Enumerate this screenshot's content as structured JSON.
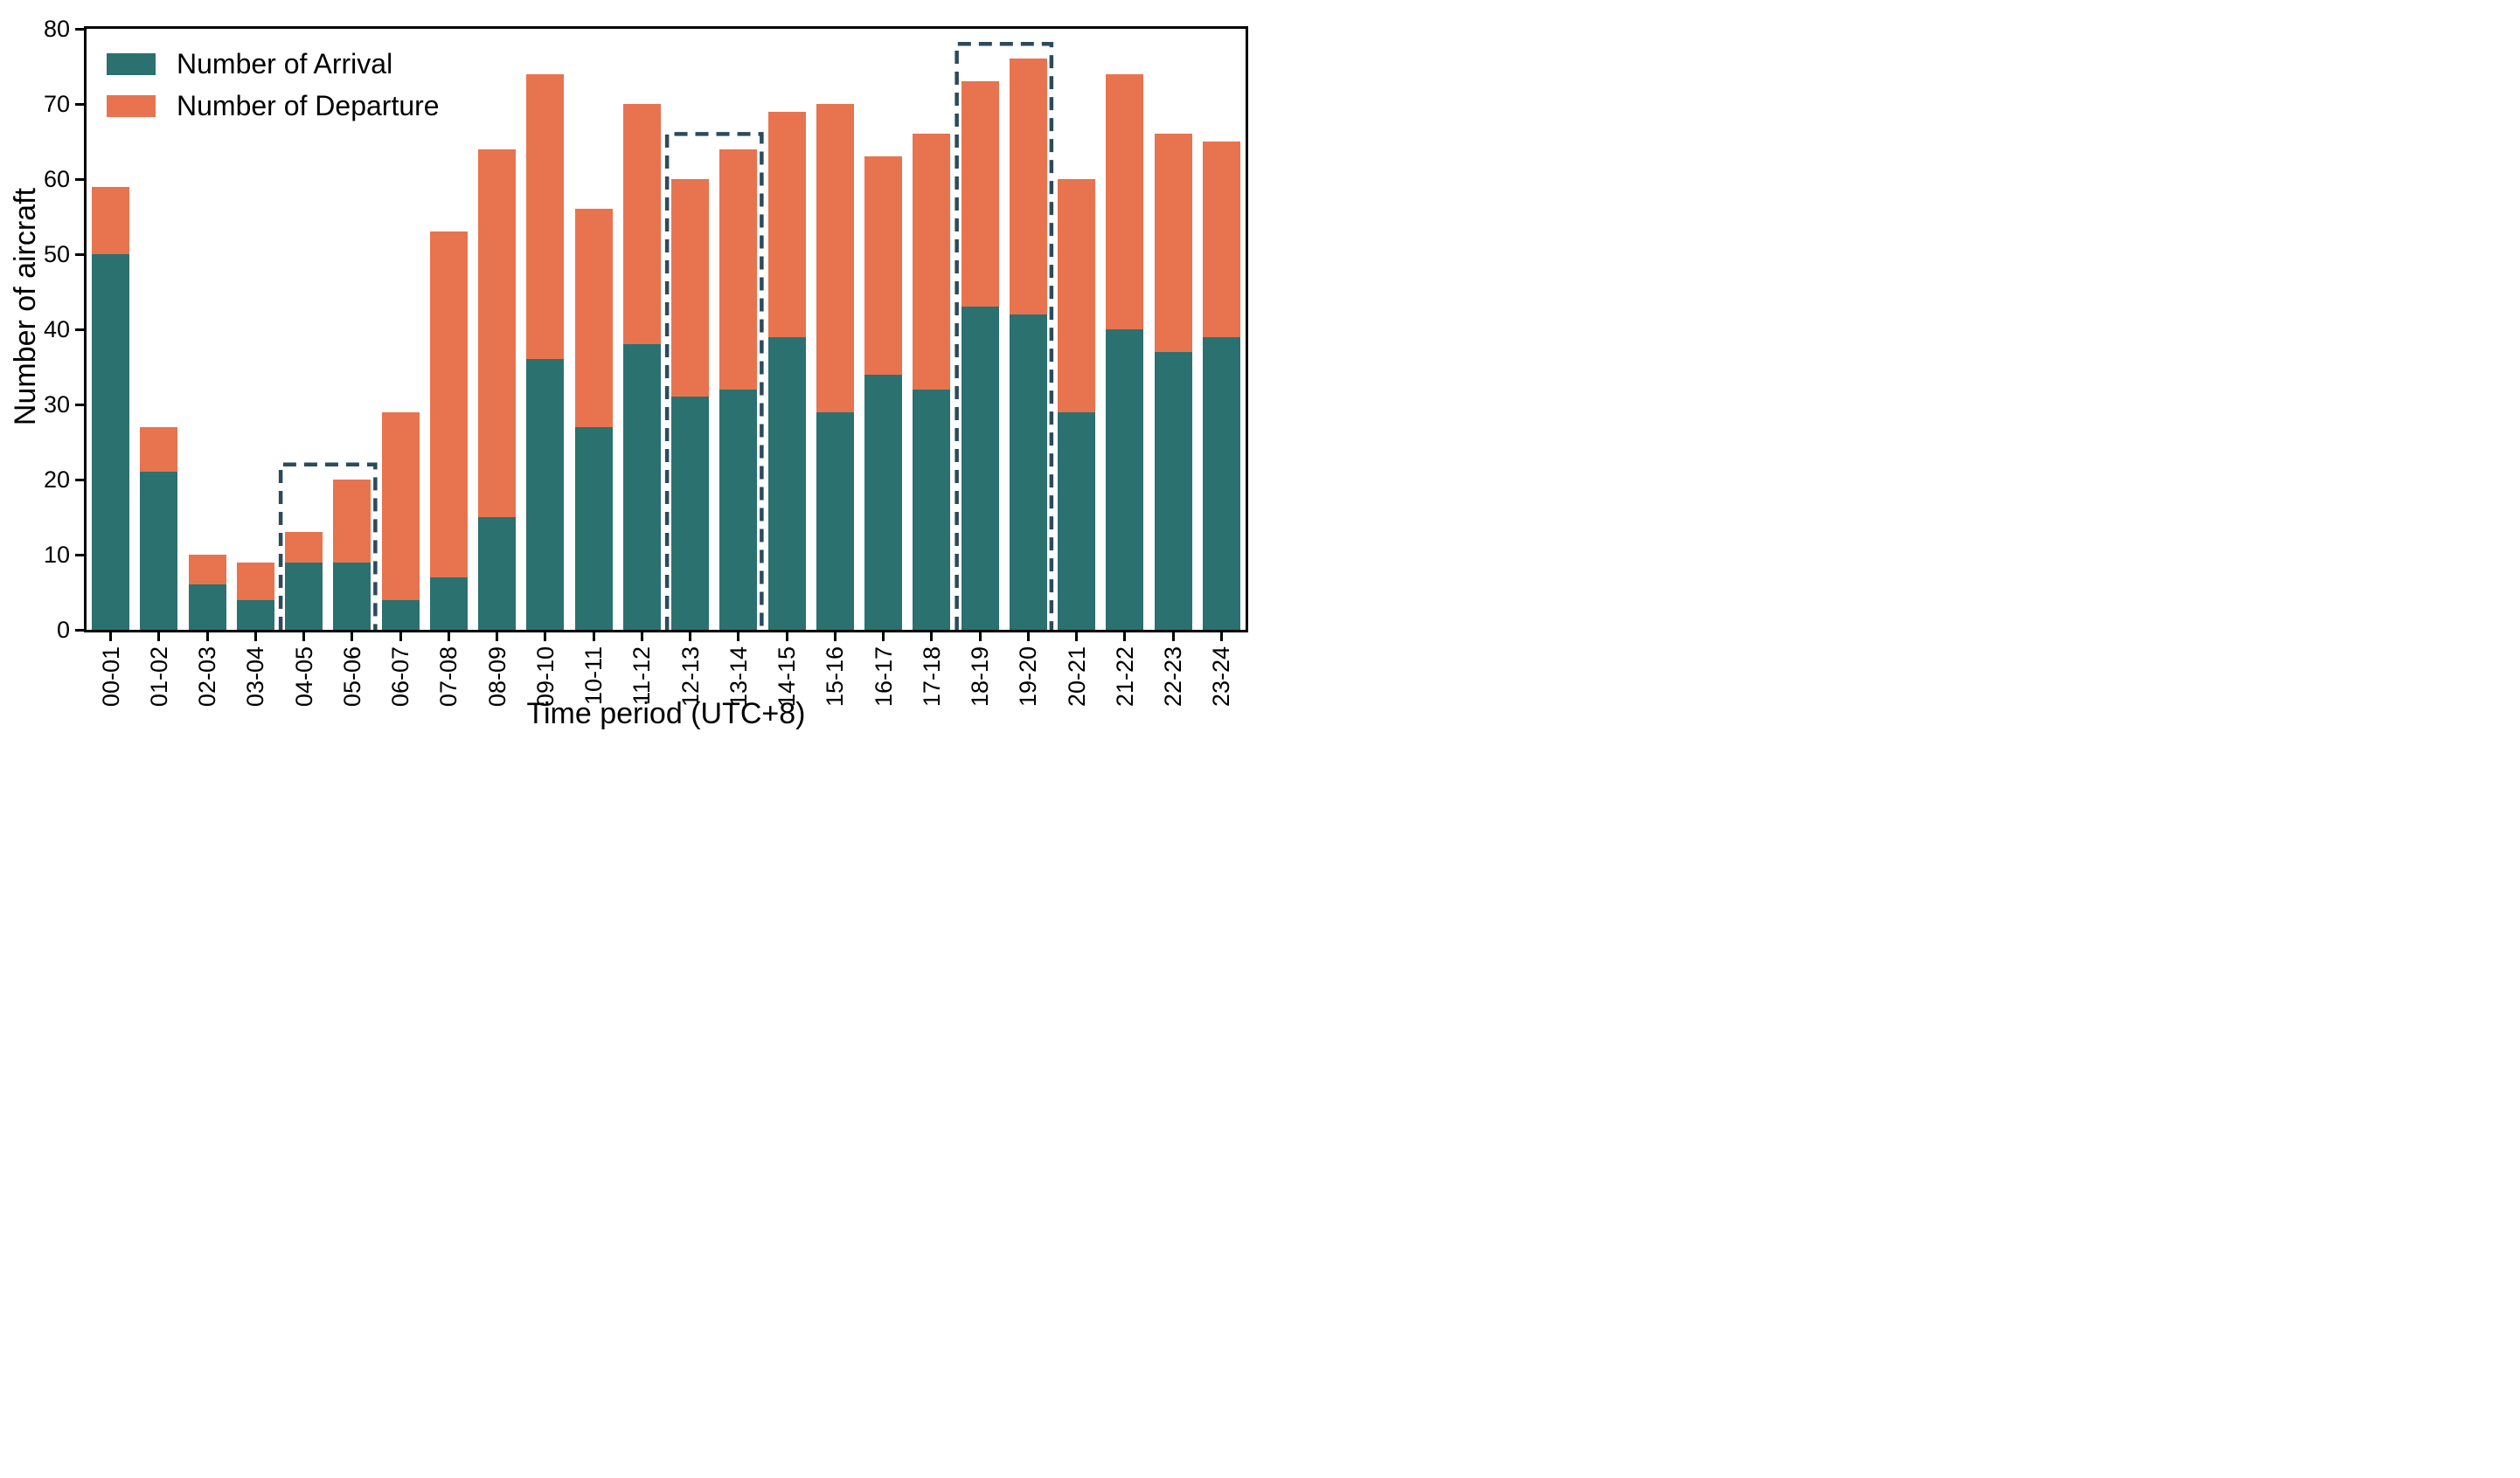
{
  "chart_data": {
    "type": "bar",
    "stacked": true,
    "title": "",
    "xlabel": "Time period (UTC+8)",
    "ylabel": "Number of aircraft",
    "ylim": [
      0,
      80
    ],
    "yticks": [
      0,
      10,
      20,
      30,
      40,
      50,
      60,
      70,
      80
    ],
    "grid": false,
    "legend_position": "upper left",
    "categories": [
      "00-01",
      "01-02",
      "02-03",
      "03-04",
      "04-05",
      "05-06",
      "06-07",
      "07-08",
      "08-09",
      "09-10",
      "10-11",
      "11-12",
      "12-13",
      "13-14",
      "14-15",
      "15-16",
      "16-17",
      "17-18",
      "18-19",
      "19-20",
      "20-21",
      "21-22",
      "22-23",
      "23-24"
    ],
    "series": [
      {
        "name": "Number of Arrival",
        "color": "#2a7170",
        "values": [
          50,
          21,
          6,
          4,
          9,
          9,
          4,
          7,
          15,
          36,
          27,
          38,
          31,
          32,
          39,
          29,
          34,
          32,
          43,
          42,
          29,
          40,
          37,
          39
        ]
      },
      {
        "name": "Number of Departure",
        "color": "#e7744f",
        "values": [
          9,
          6,
          4,
          5,
          4,
          11,
          25,
          46,
          49,
          38,
          29,
          32,
          29,
          32,
          30,
          41,
          29,
          34,
          30,
          34,
          31,
          34,
          29,
          26
        ]
      }
    ],
    "totals": [
      59,
      27,
      10,
      9,
      13,
      20,
      29,
      53,
      64,
      74,
      56,
      70,
      60,
      64,
      69,
      70,
      63,
      66,
      73,
      76,
      60,
      74,
      66,
      65
    ],
    "highlight_boxes": [
      {
        "categories": [
          "04-05",
          "05-06"
        ],
        "top": 22,
        "color": "#2c4a5c"
      },
      {
        "categories": [
          "12-13",
          "13-14"
        ],
        "top": 66,
        "color": "#2c4a5c"
      },
      {
        "categories": [
          "18-19",
          "19-20"
        ],
        "top": 78,
        "color": "#2c4a5c"
      }
    ],
    "axis_color": "#000000",
    "background_color": "#ffffff"
  },
  "legend": {
    "arrival_label": "Number of Arrival",
    "departure_label": "Number of Departure"
  }
}
